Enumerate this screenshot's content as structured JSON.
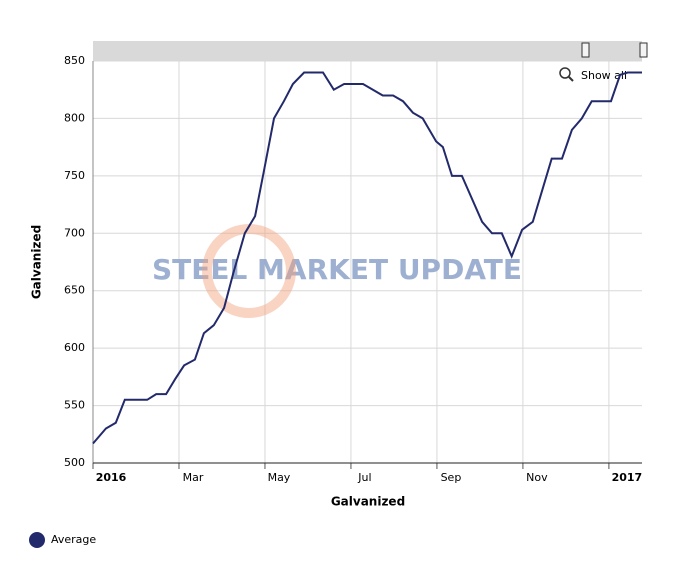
{
  "chart_data": {
    "type": "line",
    "x_label": "Galvanized",
    "y_label": "Galvanized",
    "watermark": "STEEL MARKET UPDATE",
    "zoom_button": "Show all",
    "legend": "bottom-left",
    "grid": true,
    "xlim": [
      0,
      12.77
    ],
    "xticks": [
      {
        "value": 0,
        "label": "2016"
      },
      {
        "value": 2,
        "label": "Mar"
      },
      {
        "value": 4,
        "label": "May"
      },
      {
        "value": 6,
        "label": "Jul"
      },
      {
        "value": 8,
        "label": "Sep"
      },
      {
        "value": 10,
        "label": "Nov"
      },
      {
        "value": 12,
        "label": "2017"
      }
    ],
    "ylim": [
      500,
      850
    ],
    "yticks": [
      500,
      550,
      600,
      650,
      700,
      750,
      800,
      850
    ],
    "x": [
      0,
      0.3,
      0.53,
      0.74,
      1.26,
      1.47,
      1.7,
      1.91,
      2.12,
      2.37,
      2.58,
      2.81,
      3.05,
      3.26,
      3.53,
      3.77,
      3.98,
      4.21,
      4.44,
      4.65,
      4.91,
      5.35,
      5.6,
      5.84,
      6.28,
      6.51,
      6.74,
      6.98,
      7.21,
      7.44,
      7.67,
      7.98,
      8.14,
      8.35,
      8.58,
      9.05,
      9.28,
      9.51,
      9.74,
      9.98,
      10.23,
      10.47,
      10.67,
      10.91,
      11.14,
      11.37,
      11.6,
      12.05,
      12.26,
      12.44,
      12.77
    ],
    "series": [
      {
        "name": "Average",
        "color": "#232a6b",
        "values": [
          517,
          530,
          535,
          555,
          555,
          560,
          560,
          573,
          585,
          590,
          613,
          620,
          635,
          665,
          700,
          715,
          755,
          800,
          815,
          830,
          840,
          840,
          825,
          830,
          830,
          825,
          820,
          820,
          815,
          805,
          800,
          780,
          775,
          750,
          750,
          710,
          700,
          700,
          680,
          703,
          710,
          740,
          765,
          765,
          790,
          800,
          815,
          815,
          838,
          840,
          840
        ]
      }
    ]
  }
}
